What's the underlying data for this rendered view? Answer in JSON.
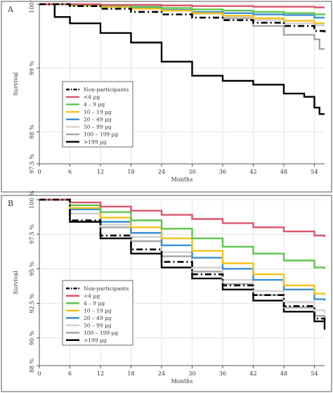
{
  "chart_data": [
    {
      "type": "line",
      "panel_label": "A",
      "xlabel": "Months",
      "ylabel": "Survival",
      "xlim": [
        0,
        56
      ],
      "ylim": [
        97.5,
        100
      ],
      "x_ticks": [
        0,
        6,
        12,
        18,
        24,
        30,
        36,
        42,
        48,
        54
      ],
      "y_ticks": [
        {
          "value": 97.5,
          "label": "97.5 %"
        },
        {
          "value": 98,
          "label": "98 %"
        },
        {
          "value": 99,
          "label": "99 %"
        },
        {
          "value": 100,
          "label": "100 %"
        }
      ],
      "grid": true,
      "legend_position": "bottom-left",
      "series": [
        {
          "name": "Non-participants",
          "color": "#000000",
          "dash": true,
          "x": [
            0,
            6,
            12,
            18,
            24,
            30,
            36,
            42,
            48,
            54,
            56
          ],
          "y": [
            100,
            99.97,
            99.93,
            99.88,
            99.84,
            99.79,
            99.75,
            99.71,
            99.66,
            99.58,
            99.56
          ]
        },
        {
          "name": "<4 µg",
          "color": "#d9556c",
          "x": [
            0,
            6,
            12,
            18,
            24,
            30,
            36,
            42,
            48,
            54,
            56
          ],
          "y": [
            100,
            100,
            99.99,
            99.99,
            99.98,
            99.97,
            99.97,
            99.96,
            99.96,
            99.95,
            99.95
          ]
        },
        {
          "name": "4 – 9 µg",
          "color": "#5ec44f",
          "x": [
            0,
            6,
            12,
            18,
            24,
            30,
            36,
            42,
            48,
            54,
            56
          ],
          "y": [
            100,
            99.99,
            99.98,
            99.96,
            99.94,
            99.92,
            99.9,
            99.88,
            99.86,
            99.84,
            99.83
          ]
        },
        {
          "name": "10 – 19 µg",
          "color": "#f3c21b",
          "x": [
            0,
            6,
            12,
            18,
            24,
            30,
            36,
            42,
            48,
            54,
            56
          ],
          "y": [
            100,
            99.98,
            99.96,
            99.93,
            99.9,
            99.86,
            99.82,
            99.78,
            99.74,
            99.7,
            99.7
          ]
        },
        {
          "name": "20 – 49 µg",
          "color": "#3b8fd1",
          "x": [
            0,
            6,
            12,
            18,
            24,
            30,
            36,
            42,
            48,
            54,
            56
          ],
          "y": [
            100,
            99.98,
            99.96,
            99.94,
            99.91,
            99.88,
            99.86,
            99.84,
            99.83,
            99.79,
            99.79
          ]
        },
        {
          "name": "50 – 99 µg",
          "color": "#d2d2d2",
          "x": [
            0,
            6,
            12,
            18,
            24,
            30,
            36,
            42,
            48,
            54,
            56
          ],
          "y": [
            100,
            99.99,
            99.97,
            99.94,
            99.9,
            99.85,
            99.8,
            99.75,
            99.7,
            99.67,
            99.67
          ]
        },
        {
          "name": "100 – 199 µg",
          "color": "#a6a6a6",
          "x": [
            0,
            6,
            12,
            18,
            24,
            30,
            36,
            42,
            48,
            54,
            55,
            56
          ],
          "y": [
            100,
            99.99,
            99.97,
            99.95,
            99.91,
            99.86,
            99.78,
            99.66,
            99.52,
            99.45,
            99.3,
            99.3
          ]
        },
        {
          "name": ">199 µg",
          "color": "#000000",
          "x": [
            0,
            3,
            6,
            12,
            18,
            24,
            30,
            36,
            42,
            48,
            52,
            54,
            55,
            56
          ],
          "y": [
            100,
            99.8,
            99.7,
            99.55,
            99.4,
            99.1,
            98.88,
            98.8,
            98.74,
            98.6,
            98.55,
            98.38,
            98.28,
            98.28
          ]
        }
      ]
    },
    {
      "type": "line",
      "panel_label": "B",
      "xlabel": "Months",
      "ylabel": "Survival",
      "xlim": [
        0,
        56
      ],
      "ylim": [
        88,
        100
      ],
      "x_ticks": [
        0,
        6,
        12,
        18,
        24,
        30,
        36,
        42,
        48,
        54
      ],
      "y_ticks": [
        {
          "value": 88,
          "label": "88 %"
        },
        {
          "value": 90,
          "label": "90 %"
        },
        {
          "value": 92.5,
          "label": "92.5 %"
        },
        {
          "value": 95,
          "label": "95 %"
        },
        {
          "value": 97.5,
          "label": "97.5 %"
        },
        {
          "value": 100,
          "label": "100 %"
        }
      ],
      "grid": true,
      "legend_position": "bottom-left",
      "series": [
        {
          "name": "Non-participants",
          "color": "#000000",
          "dash": true,
          "x": [
            0,
            6,
            12,
            18,
            24,
            30,
            36,
            42,
            48,
            54,
            56
          ],
          "y": [
            100,
            98.5,
            97.4,
            96.4,
            95.5,
            94.6,
            93.8,
            93.1,
            92.3,
            91.4,
            91.2
          ]
        },
        {
          "name": "<4 µg",
          "color": "#d9556c",
          "x": [
            0,
            6,
            12,
            18,
            24,
            30,
            36,
            42,
            48,
            54,
            56
          ],
          "y": [
            100,
            99.8,
            99.5,
            99.2,
            98.9,
            98.6,
            98.3,
            98.0,
            97.7,
            97.4,
            97.3
          ]
        },
        {
          "name": "4 – 9 µg",
          "color": "#5ec44f",
          "x": [
            0,
            6,
            12,
            18,
            24,
            30,
            36,
            42,
            48,
            54,
            56
          ],
          "y": [
            100,
            99.6,
            99.1,
            98.5,
            97.9,
            97.2,
            96.6,
            96.1,
            95.6,
            95.1,
            95.0
          ]
        },
        {
          "name": "10 – 19 µg",
          "color": "#f3c21b",
          "x": [
            0,
            6,
            12,
            18,
            24,
            30,
            36,
            42,
            48,
            54,
            56
          ],
          "y": [
            100,
            99.4,
            98.7,
            98.0,
            97.2,
            96.3,
            95.4,
            94.6,
            93.8,
            93.2,
            93.1
          ]
        },
        {
          "name": "20 – 49 µg",
          "color": "#3b8fd1",
          "x": [
            0,
            6,
            12,
            18,
            24,
            30,
            36,
            42,
            48,
            54,
            56
          ],
          "y": [
            100,
            99.3,
            98.4,
            97.6,
            96.7,
            95.8,
            95.0,
            94.2,
            93.5,
            92.8,
            92.7
          ]
        },
        {
          "name": "50 – 99 µg",
          "color": "#d2d2d2",
          "x": [
            0,
            6,
            12,
            18,
            24,
            30,
            36,
            42,
            48,
            54,
            56
          ],
          "y": [
            100,
            99.0,
            98.2,
            97.3,
            96.2,
            95.1,
            94.2,
            93.4,
            92.6,
            92.0,
            91.8
          ]
        },
        {
          "name": "100 – 199 µg",
          "color": "#a6a6a6",
          "x": [
            0,
            6,
            12,
            18,
            24,
            30,
            36,
            42,
            48,
            54,
            56
          ],
          "y": [
            100,
            99.0,
            98.0,
            97.0,
            95.9,
            94.8,
            93.9,
            93.1,
            92.2,
            91.6,
            91.4
          ]
        },
        {
          "name": ">199 µg",
          "color": "#000000",
          "x": [
            0,
            6,
            12,
            18,
            24,
            30,
            36,
            42,
            48,
            54,
            56
          ],
          "y": [
            100,
            98.4,
            97.2,
            96.1,
            95.1,
            94.3,
            93.5,
            92.7,
            91.9,
            91.2,
            90.6
          ]
        }
      ]
    }
  ]
}
